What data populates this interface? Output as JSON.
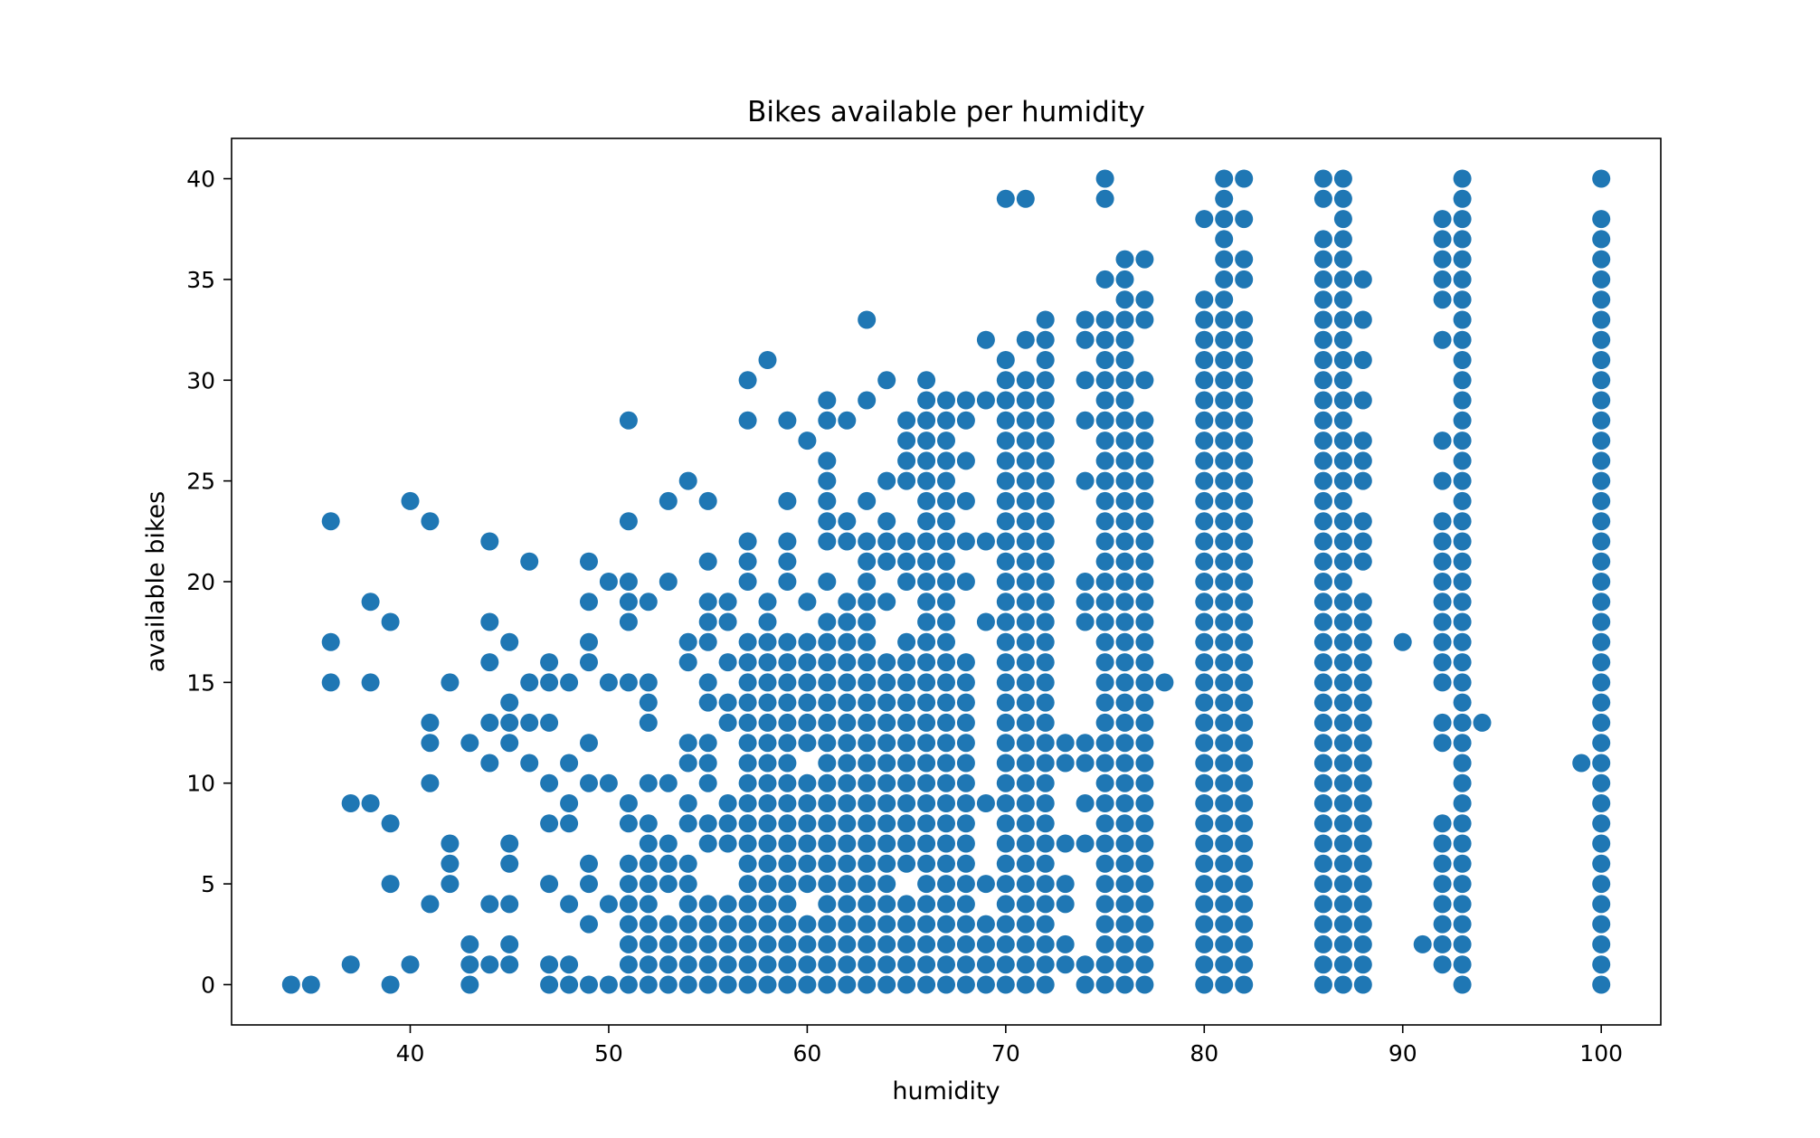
{
  "chart_data": {
    "type": "scatter",
    "title": "Bikes available per humidity",
    "xlabel": "humidity",
    "ylabel": "available bikes",
    "xlim": [
      31,
      103
    ],
    "ylim": [
      -2,
      42
    ],
    "xticks": [
      40,
      50,
      60,
      70,
      80,
      90,
      100
    ],
    "yticks": [
      0,
      5,
      10,
      15,
      20,
      25,
      30,
      35,
      40
    ],
    "grid": false,
    "legend": "none",
    "marker_color": "#1f77b4",
    "columns": [
      {
        "x": 34,
        "y": [
          0
        ]
      },
      {
        "x": 35,
        "y": [
          0
        ]
      },
      {
        "x": 36,
        "y": [
          15,
          17,
          23
        ]
      },
      {
        "x": 37,
        "y": [
          1,
          9
        ]
      },
      {
        "x": 38,
        "y": [
          9,
          15,
          19
        ]
      },
      {
        "x": 39,
        "y": [
          0,
          5,
          8,
          18
        ]
      },
      {
        "x": 40,
        "y": [
          1,
          24
        ]
      },
      {
        "x": 41,
        "y": [
          4,
          10,
          12,
          13,
          23
        ]
      },
      {
        "x": 42,
        "y": [
          5,
          6,
          7,
          15
        ]
      },
      {
        "x": 43,
        "y": [
          0,
          1,
          2,
          12
        ]
      },
      {
        "x": 44,
        "y": [
          1,
          4,
          11,
          13,
          16,
          18,
          22
        ]
      },
      {
        "x": 45,
        "y": [
          1,
          2,
          4,
          6,
          7,
          12,
          13,
          14,
          17
        ]
      },
      {
        "x": 46,
        "y": [
          11,
          13,
          15,
          21
        ]
      },
      {
        "x": 47,
        "y": [
          0,
          1,
          5,
          8,
          10,
          13,
          15,
          16
        ]
      },
      {
        "x": 48,
        "y": [
          0,
          1,
          4,
          8,
          9,
          11,
          15
        ]
      },
      {
        "x": 49,
        "y": [
          0,
          3,
          5,
          6,
          10,
          12,
          16,
          17,
          19,
          21
        ]
      },
      {
        "x": 50,
        "y": [
          0,
          4,
          10,
          15,
          20
        ]
      },
      {
        "x": 51,
        "y": [
          0,
          1,
          2,
          3,
          4,
          5,
          6,
          8,
          9,
          15,
          18,
          19,
          20,
          23,
          28
        ]
      },
      {
        "x": 52,
        "y": [
          0,
          1,
          2,
          3,
          4,
          5,
          6,
          7,
          8,
          10,
          13,
          14,
          15,
          19
        ]
      },
      {
        "x": 53,
        "y": [
          0,
          1,
          2,
          3,
          5,
          6,
          7,
          10,
          20,
          24
        ]
      },
      {
        "x": 54,
        "y": [
          0,
          1,
          2,
          3,
          4,
          5,
          6,
          8,
          9,
          11,
          12,
          16,
          17,
          25
        ]
      },
      {
        "x": 55,
        "y": [
          0,
          1,
          2,
          3,
          4,
          7,
          8,
          10,
          11,
          12,
          14,
          15,
          17,
          18,
          19,
          21,
          24
        ]
      },
      {
        "x": 56,
        "y": [
          0,
          1,
          2,
          3,
          4,
          7,
          8,
          9,
          13,
          14,
          16,
          18,
          19
        ]
      },
      {
        "x": 57,
        "y": [
          0,
          1,
          2,
          3,
          4,
          5,
          6,
          7,
          8,
          9,
          10,
          11,
          12,
          13,
          14,
          15,
          16,
          17,
          20,
          21,
          22,
          28,
          30
        ]
      },
      {
        "x": 58,
        "y": [
          0,
          1,
          2,
          3,
          4,
          5,
          6,
          7,
          8,
          9,
          10,
          11,
          12,
          13,
          14,
          15,
          16,
          17,
          18,
          19,
          31
        ]
      },
      {
        "x": 59,
        "y": [
          0,
          1,
          2,
          3,
          4,
          5,
          6,
          7,
          8,
          9,
          10,
          11,
          12,
          13,
          14,
          15,
          16,
          17,
          20,
          21,
          22,
          24,
          28
        ]
      },
      {
        "x": 60,
        "y": [
          0,
          1,
          2,
          3,
          5,
          6,
          7,
          8,
          9,
          10,
          12,
          13,
          14,
          15,
          16,
          17,
          19,
          27
        ]
      },
      {
        "x": 61,
        "y": [
          0,
          1,
          2,
          3,
          4,
          5,
          6,
          7,
          8,
          9,
          10,
          11,
          12,
          13,
          14,
          15,
          16,
          17,
          18,
          20,
          22,
          23,
          24,
          25,
          26,
          28,
          29
        ]
      },
      {
        "x": 62,
        "y": [
          0,
          1,
          2,
          3,
          4,
          5,
          6,
          7,
          8,
          9,
          10,
          11,
          12,
          13,
          14,
          15,
          16,
          17,
          18,
          19,
          22,
          23,
          28
        ]
      },
      {
        "x": 63,
        "y": [
          0,
          1,
          2,
          3,
          4,
          5,
          6,
          7,
          8,
          9,
          10,
          11,
          12,
          13,
          14,
          15,
          16,
          17,
          18,
          19,
          20,
          21,
          22,
          24,
          29,
          33
        ]
      },
      {
        "x": 64,
        "y": [
          0,
          1,
          2,
          3,
          4,
          5,
          6,
          7,
          8,
          9,
          10,
          11,
          12,
          13,
          14,
          15,
          16,
          19,
          21,
          22,
          23,
          25,
          30
        ]
      },
      {
        "x": 65,
        "y": [
          0,
          1,
          2,
          3,
          4,
          6,
          7,
          8,
          9,
          10,
          11,
          12,
          13,
          14,
          15,
          16,
          17,
          20,
          21,
          22,
          25,
          26,
          27,
          28
        ]
      },
      {
        "x": 66,
        "y": [
          0,
          1,
          2,
          3,
          4,
          5,
          6,
          7,
          8,
          9,
          10,
          11,
          12,
          13,
          14,
          15,
          16,
          17,
          18,
          19,
          20,
          21,
          22,
          23,
          24,
          25,
          26,
          27,
          28,
          29,
          30
        ]
      },
      {
        "x": 67,
        "y": [
          0,
          1,
          2,
          3,
          4,
          5,
          6,
          7,
          8,
          9,
          10,
          11,
          12,
          13,
          14,
          15,
          16,
          17,
          18,
          19,
          20,
          21,
          22,
          23,
          24,
          25,
          26,
          27,
          28,
          29
        ]
      },
      {
        "x": 68,
        "y": [
          0,
          1,
          2,
          3,
          4,
          5,
          6,
          7,
          8,
          9,
          10,
          11,
          12,
          13,
          14,
          15,
          16,
          20,
          22,
          24,
          26,
          28,
          29
        ]
      },
      {
        "x": 69,
        "y": [
          0,
          1,
          2,
          3,
          5,
          9,
          18,
          22,
          29,
          32
        ]
      },
      {
        "x": 70,
        "y": [
          0,
          1,
          2,
          3,
          4,
          5,
          6,
          7,
          8,
          9,
          10,
          11,
          12,
          13,
          14,
          15,
          16,
          17,
          18,
          19,
          20,
          21,
          22,
          23,
          24,
          25,
          26,
          27,
          28,
          29,
          30,
          31,
          39
        ]
      },
      {
        "x": 71,
        "y": [
          0,
          1,
          2,
          3,
          4,
          5,
          6,
          7,
          8,
          9,
          10,
          11,
          12,
          13,
          14,
          15,
          16,
          17,
          18,
          19,
          20,
          21,
          22,
          23,
          24,
          25,
          26,
          27,
          28,
          29,
          30,
          32,
          39
        ]
      },
      {
        "x": 72,
        "y": [
          0,
          1,
          2,
          3,
          4,
          5,
          6,
          7,
          8,
          9,
          10,
          11,
          12,
          13,
          14,
          15,
          16,
          17,
          18,
          19,
          20,
          21,
          22,
          23,
          24,
          25,
          26,
          27,
          28,
          29,
          30,
          31,
          32,
          33
        ]
      },
      {
        "x": 73,
        "y": [
          1,
          2,
          4,
          5,
          7,
          11,
          12
        ]
      },
      {
        "x": 74,
        "y": [
          0,
          1,
          7,
          9,
          11,
          12,
          18,
          19,
          20,
          25,
          28,
          30,
          32,
          33
        ]
      },
      {
        "x": 75,
        "y": [
          0,
          1,
          2,
          3,
          4,
          5,
          6,
          7,
          8,
          9,
          10,
          11,
          12,
          13,
          14,
          15,
          16,
          17,
          18,
          19,
          20,
          21,
          22,
          23,
          24,
          25,
          26,
          27,
          28,
          29,
          30,
          31,
          32,
          33,
          35,
          39,
          40
        ]
      },
      {
        "x": 76,
        "y": [
          0,
          1,
          2,
          3,
          4,
          5,
          6,
          7,
          8,
          9,
          10,
          11,
          12,
          13,
          14,
          15,
          16,
          17,
          18,
          19,
          20,
          21,
          22,
          23,
          24,
          25,
          26,
          27,
          28,
          29,
          30,
          31,
          32,
          33,
          34,
          35,
          36
        ]
      },
      {
        "x": 77,
        "y": [
          0,
          1,
          2,
          3,
          4,
          5,
          6,
          7,
          8,
          9,
          10,
          11,
          12,
          13,
          14,
          15,
          16,
          17,
          18,
          19,
          20,
          21,
          22,
          23,
          24,
          25,
          26,
          27,
          28,
          30,
          33,
          34,
          36
        ]
      },
      {
        "x": 78,
        "y": [
          15
        ]
      },
      {
        "x": 80,
        "y": [
          0,
          1,
          2,
          3,
          4,
          5,
          6,
          7,
          8,
          9,
          10,
          11,
          12,
          13,
          14,
          15,
          16,
          17,
          18,
          19,
          20,
          21,
          22,
          23,
          24,
          25,
          26,
          27,
          28,
          29,
          30,
          31,
          32,
          33,
          34,
          38
        ]
      },
      {
        "x": 81,
        "y": [
          0,
          1,
          2,
          3,
          4,
          5,
          6,
          7,
          8,
          9,
          10,
          11,
          12,
          13,
          14,
          15,
          16,
          17,
          18,
          19,
          20,
          21,
          22,
          23,
          24,
          25,
          26,
          27,
          28,
          29,
          30,
          31,
          32,
          33,
          34,
          35,
          36,
          37,
          38,
          39,
          40
        ]
      },
      {
        "x": 82,
        "y": [
          0,
          1,
          2,
          3,
          4,
          5,
          6,
          7,
          8,
          9,
          10,
          11,
          12,
          13,
          14,
          15,
          16,
          17,
          18,
          19,
          20,
          21,
          22,
          23,
          24,
          25,
          26,
          27,
          28,
          29,
          30,
          31,
          32,
          33,
          35,
          36,
          38,
          40
        ]
      },
      {
        "x": 86,
        "y": [
          0,
          1,
          2,
          3,
          4,
          5,
          6,
          7,
          8,
          9,
          10,
          11,
          12,
          13,
          14,
          15,
          16,
          17,
          18,
          19,
          20,
          21,
          22,
          23,
          24,
          25,
          26,
          27,
          28,
          29,
          30,
          31,
          32,
          33,
          34,
          35,
          36,
          37,
          39,
          40
        ]
      },
      {
        "x": 87,
        "y": [
          0,
          1,
          2,
          3,
          4,
          5,
          6,
          7,
          8,
          9,
          10,
          11,
          12,
          13,
          14,
          15,
          16,
          17,
          18,
          19,
          20,
          21,
          22,
          23,
          24,
          25,
          26,
          27,
          28,
          29,
          30,
          31,
          32,
          33,
          34,
          35,
          36,
          37,
          38,
          39,
          40
        ]
      },
      {
        "x": 88,
        "y": [
          0,
          1,
          2,
          3,
          4,
          5,
          6,
          7,
          8,
          9,
          10,
          11,
          12,
          13,
          14,
          15,
          16,
          17,
          18,
          19,
          21,
          22,
          23,
          25,
          26,
          27,
          29,
          31,
          33,
          35
        ]
      },
      {
        "x": 90,
        "y": [
          17
        ]
      },
      {
        "x": 91,
        "y": [
          2
        ]
      },
      {
        "x": 92,
        "y": [
          1,
          2,
          3,
          4,
          5,
          6,
          7,
          8,
          12,
          13,
          15,
          16,
          17,
          18,
          19,
          20,
          21,
          22,
          23,
          25,
          27,
          32,
          34,
          35,
          36,
          37,
          38
        ]
      },
      {
        "x": 93,
        "y": [
          0,
          1,
          2,
          3,
          4,
          5,
          6,
          7,
          8,
          9,
          10,
          11,
          12,
          13,
          14,
          15,
          16,
          17,
          18,
          19,
          20,
          21,
          22,
          23,
          24,
          25,
          26,
          27,
          28,
          29,
          30,
          31,
          32,
          33,
          34,
          35,
          36,
          37,
          38,
          39,
          40
        ]
      },
      {
        "x": 94,
        "y": [
          13
        ]
      },
      {
        "x": 99,
        "y": [
          11
        ]
      },
      {
        "x": 100,
        "y": [
          0,
          1,
          2,
          3,
          4,
          5,
          6,
          7,
          8,
          9,
          10,
          11,
          12,
          13,
          14,
          15,
          16,
          17,
          18,
          19,
          20,
          21,
          22,
          23,
          24,
          25,
          26,
          27,
          28,
          29,
          30,
          31,
          32,
          33,
          34,
          35,
          36,
          37,
          38,
          40
        ]
      }
    ]
  }
}
